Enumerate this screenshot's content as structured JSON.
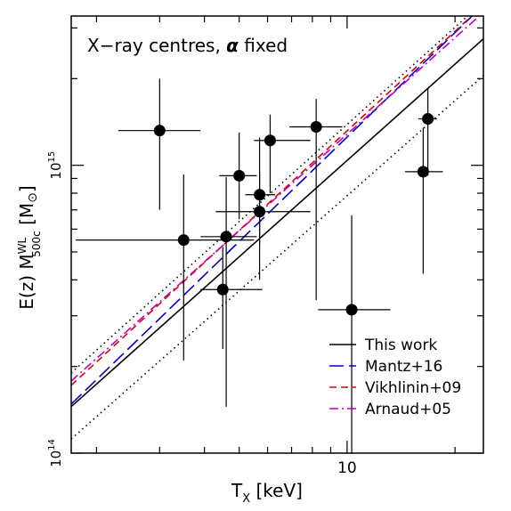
{
  "chart_data": {
    "type": "scatter",
    "title": "",
    "annotation_parts": [
      "X−ray centres, ",
      "α",
      " fixed"
    ],
    "xlabel_main": "T",
    "xlabel_sub": "X",
    "xlabel_unit": " [keV]",
    "ylabel_prefix": "E(z) M",
    "ylabel_sup": "WL",
    "ylabel_sub": "500c",
    "ylabel_unit_open": " [M",
    "ylabel_unit_sym": "⊙",
    "ylabel_unit_close": "]",
    "x_scale": "log",
    "y_scale": "log",
    "xlim": [
      1.7,
      24
    ],
    "ylim": [
      100000000000000.0,
      3300000000000000.0
    ],
    "x_ticks_labeled": [
      {
        "value": 10,
        "label": "10"
      }
    ],
    "y_ticks_labeled": [
      {
        "value": 100000000000000.0,
        "base": "10",
        "exp": "14"
      },
      {
        "value": 1000000000000000.0,
        "base": "10",
        "exp": "15"
      }
    ],
    "legend_position": "bottom-right",
    "legend": [
      {
        "name": "This work",
        "color": "#000000",
        "dash": "solid"
      },
      {
        "name": "Mantz+16",
        "color": "#0000cc",
        "dash": "long-dash"
      },
      {
        "name": "Vikhlinin+09",
        "color": "#dd0000",
        "dash": "dash"
      },
      {
        "name": "Arnaud+05",
        "color": "#bb00bb",
        "dash": "dash-dot"
      }
    ],
    "lines": [
      {
        "name": "This work",
        "style": "solid",
        "color": "#000000",
        "points": [
          [
            1.7,
            145000000000000.0
          ],
          [
            24,
            2750000000000000.0
          ]
        ]
      },
      {
        "name": "",
        "style": "dotted",
        "color": "#000000",
        "points": [
          [
            1.7,
            190000000000000.0
          ],
          [
            24,
            3700000000000000.0
          ]
        ]
      },
      {
        "name": "",
        "style": "dotted",
        "color": "#000000",
        "points": [
          [
            1.7,
            112000000000000.0
          ],
          [
            24,
            2050000000000000.0
          ]
        ]
      },
      {
        "name": "Mantz+16",
        "style": "long-dash",
        "color": "#0000cc",
        "points": [
          [
            1.7,
            148000000000000.0
          ],
          [
            24,
            3600000000000000.0
          ]
        ]
      },
      {
        "name": "Vikhlinin+09",
        "style": "dash",
        "color": "#dd0000",
        "points": [
          [
            1.7,
            172000000000000.0
          ],
          [
            24,
            3600000000000000.0
          ]
        ]
      },
      {
        "name": "Arnaud+05",
        "style": "dash-dot",
        "color": "#bb00bb",
        "points": [
          [
            1.7,
            178000000000000.0
          ],
          [
            24,
            3400000000000000.0
          ]
        ]
      }
    ],
    "points": [
      {
        "x": 3.0,
        "y": 1320000000000000.0,
        "xerr": [
          2.3,
          3.9
        ],
        "yerr": [
          700000000000000.0,
          2000000000000000.0
        ]
      },
      {
        "x": 3.5,
        "y": 550000000000000.0,
        "xerr": [
          1.75,
          5.5
        ],
        "yerr": [
          210000000000000.0,
          930000000000000.0
        ]
      },
      {
        "x": 4.6,
        "y": 565000000000000.0,
        "xerr": [
          3.9,
          5.6
        ],
        "yerr": [
          145000000000000.0,
          910000000000000.0
        ]
      },
      {
        "x": 4.5,
        "y": 370000000000000.0,
        "xerr": [
          3.9,
          5.8
        ],
        "yerr": [
          230000000000000.0,
          520000000000000.0
        ]
      },
      {
        "x": 5.0,
        "y": 920000000000000.0,
        "xerr": [
          4.4,
          5.6
        ],
        "yerr": [
          650000000000000.0,
          1300000000000000.0
        ]
      },
      {
        "x": 5.7,
        "y": 790000000000000.0,
        "xerr": [
          5.2,
          6.3
        ],
        "yerr": [
          530000000000000.0,
          1250000000000000.0
        ]
      },
      {
        "x": 5.7,
        "y": 690000000000000.0,
        "xerr": [
          4.3,
          7.9
        ],
        "yerr": [
          400000000000000.0,
          950000000000000.0
        ]
      },
      {
        "x": 6.1,
        "y": 1220000000000000.0,
        "xerr": [
          5.5,
          7.9
        ],
        "yerr": [
          800000000000000.0,
          1500000000000000.0
        ]
      },
      {
        "x": 8.2,
        "y": 1360000000000000.0,
        "xerr": [
          6.9,
          9.7
        ],
        "yerr": [
          340000000000000.0,
          1700000000000000.0
        ]
      },
      {
        "x": 10.3,
        "y": 315000000000000.0,
        "xerr": [
          8.3,
          13.2
        ],
        "yerr": [
          100000000000000.0,
          670000000000000.0
        ]
      },
      {
        "x": 16.3,
        "y": 950000000000000.0,
        "xerr": [
          14.5,
          18.5
        ],
        "yerr": [
          420000000000000.0,
          1350000000000000.0
        ]
      },
      {
        "x": 16.8,
        "y": 1450000000000000.0,
        "xerr": [
          15.8,
          17.8
        ],
        "yerr": [
          920000000000000.0,
          1850000000000000.0
        ]
      }
    ]
  }
}
